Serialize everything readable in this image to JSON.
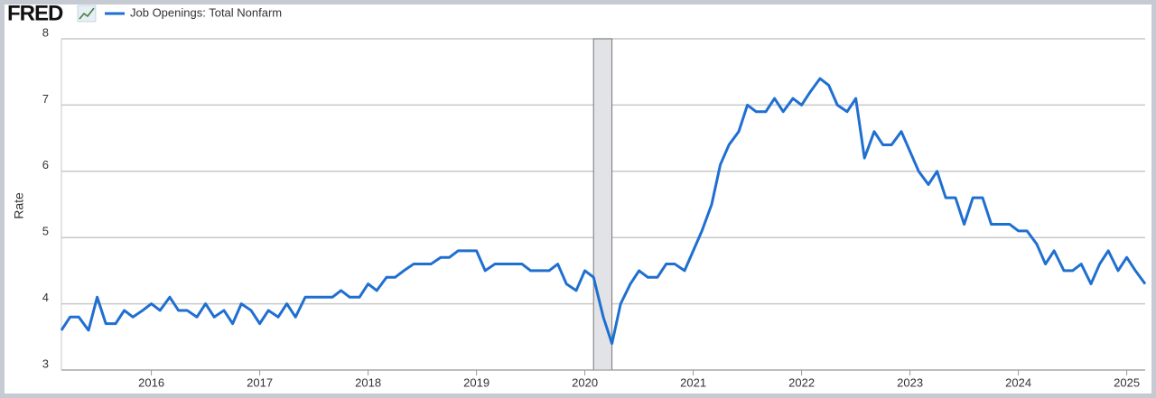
{
  "chart_data": {
    "type": "line",
    "source_logo": "FRED",
    "y_label": "Rate",
    "x": [
      2015.17,
      2015.25,
      2015.33,
      2015.42,
      2015.5,
      2015.58,
      2015.67,
      2015.75,
      2015.83,
      2015.92,
      2016,
      2016.08,
      2016.17,
      2016.25,
      2016.33,
      2016.42,
      2016.5,
      2016.58,
      2016.67,
      2016.75,
      2016.83,
      2016.92,
      2017,
      2017.08,
      2017.17,
      2017.25,
      2017.33,
      2017.42,
      2017.5,
      2017.58,
      2017.67,
      2017.75,
      2017.83,
      2017.92,
      2018,
      2018.08,
      2018.17,
      2018.25,
      2018.33,
      2018.42,
      2018.5,
      2018.58,
      2018.67,
      2018.75,
      2018.83,
      2018.92,
      2019,
      2019.08,
      2019.17,
      2019.25,
      2019.33,
      2019.42,
      2019.5,
      2019.58,
      2019.67,
      2019.75,
      2019.83,
      2019.92,
      2020,
      2020.08,
      2020.17,
      2020.25,
      2020.33,
      2020.42,
      2020.5,
      2020.58,
      2020.67,
      2020.75,
      2020.83,
      2020.92,
      2021,
      2021.08,
      2021.17,
      2021.25,
      2021.33,
      2021.42,
      2021.5,
      2021.58,
      2021.67,
      2021.75,
      2021.83,
      2021.92,
      2022,
      2022.08,
      2022.17,
      2022.25,
      2022.33,
      2022.42,
      2022.5,
      2022.58,
      2022.67,
      2022.75,
      2022.83,
      2022.92,
      2023,
      2023.08,
      2023.17,
      2023.25,
      2023.33,
      2023.42,
      2023.5,
      2023.58,
      2023.67,
      2023.75,
      2023.83,
      2023.92,
      2024,
      2024.08,
      2024.17,
      2024.25,
      2024.33,
      2024.42,
      2024.5,
      2024.58,
      2024.67,
      2024.75,
      2024.83,
      2024.92,
      2025,
      2025.08,
      2025.17
    ],
    "series": [
      {
        "name": "Job Openings: Total Nonfarm",
        "color": "#1f6fd1",
        "values": [
          3.6,
          3.8,
          3.8,
          3.6,
          4.1,
          3.7,
          3.7,
          3.9,
          3.8,
          3.9,
          4.0,
          3.9,
          4.1,
          3.9,
          3.9,
          3.8,
          4.0,
          3.8,
          3.9,
          3.7,
          4.0,
          3.9,
          3.7,
          3.9,
          3.8,
          4.0,
          3.8,
          4.1,
          4.1,
          4.1,
          4.1,
          4.2,
          4.1,
          4.1,
          4.3,
          4.2,
          4.4,
          4.4,
          4.5,
          4.6,
          4.6,
          4.6,
          4.7,
          4.7,
          4.8,
          4.8,
          4.8,
          4.5,
          4.6,
          4.6,
          4.6,
          4.6,
          4.5,
          4.5,
          4.5,
          4.6,
          4.3,
          4.2,
          4.5,
          4.4,
          3.8,
          3.4,
          4.0,
          4.3,
          4.5,
          4.4,
          4.4,
          4.6,
          4.6,
          4.5,
          4.8,
          5.1,
          5.5,
          6.1,
          6.4,
          6.6,
          7.0,
          6.9,
          6.9,
          7.1,
          6.9,
          7.1,
          7.0,
          7.2,
          7.4,
          7.3,
          7.0,
          6.9,
          7.1,
          6.2,
          6.6,
          6.4,
          6.4,
          6.6,
          6.3,
          6.0,
          5.8,
          6.0,
          5.6,
          5.6,
          5.2,
          5.6,
          5.6,
          5.2,
          5.2,
          5.2,
          5.1,
          5.1,
          4.9,
          4.6,
          4.8,
          4.5,
          4.5,
          4.6,
          4.3,
          4.6,
          4.8,
          4.5,
          4.7,
          4.5,
          4.3
        ]
      }
    ],
    "recession": [
      2020.08,
      2020.25
    ],
    "xlim": [
      2015.17,
      2025.17
    ],
    "xticks": [
      2016,
      2017,
      2018,
      2019,
      2020,
      2021,
      2022,
      2023,
      2024,
      2025
    ],
    "ylim": [
      3,
      8
    ],
    "yticks": [
      3,
      4,
      5,
      6,
      7,
      8
    ],
    "grid": true
  }
}
